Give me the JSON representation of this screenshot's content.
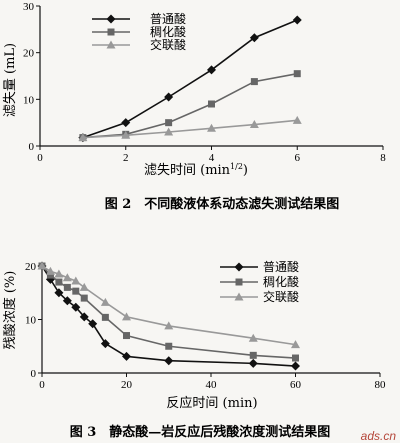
{
  "chart_data": [
    {
      "type": "line",
      "x": [
        1,
        2,
        3,
        4,
        5,
        6
      ],
      "xlim": [
        0,
        8
      ],
      "xticks": [
        "0",
        "2",
        "4",
        "6",
        "8"
      ],
      "ylim": [
        0,
        30
      ],
      "yticks": [
        "0",
        "10",
        "20",
        "30"
      ],
      "xlabel": "滤失时间 (min",
      "xlabel_sup": "1/2",
      "xlabel_end": ")",
      "ylabel": "滤失量 (mL)",
      "caption": "图 2　不同酸液体系动态滤失测试结果图",
      "legend_position": "top-center",
      "series": [
        {
          "name": "普通酸",
          "marker": "diamond",
          "values": [
            1.8,
            5.0,
            10.5,
            16.3,
            23.2,
            27.0
          ]
        },
        {
          "name": "稠化酸",
          "marker": "square",
          "values": [
            1.8,
            2.5,
            5.0,
            9.0,
            13.8,
            15.5
          ]
        },
        {
          "name": "交联酸",
          "marker": "triangle",
          "values": [
            1.8,
            2.3,
            3.0,
            3.8,
            4.6,
            5.5
          ]
        }
      ]
    },
    {
      "type": "line",
      "xlim": [
        0,
        80
      ],
      "xticks": [
        "0",
        "20",
        "40",
        "60",
        "80"
      ],
      "ylim": [
        0,
        20
      ],
      "yticks": [
        "0",
        "10",
        "20"
      ],
      "xlabel": "反应时间 (min)",
      "ylabel": "残酸浓度 (%)",
      "caption": "图 3　静态酸—岩反应后残酸浓度测试结果图",
      "legend_position": "top-right",
      "series": [
        {
          "name": "普通酸",
          "marker": "diamond",
          "x": [
            0,
            2,
            4,
            6,
            8,
            10,
            12,
            15,
            20,
            30,
            50,
            60
          ],
          "values": [
            20,
            17.5,
            15,
            13.5,
            12.3,
            10.5,
            9.2,
            5.5,
            3.1,
            2.3,
            1.8,
            1.3
          ]
        },
        {
          "name": "稠化酸",
          "marker": "square",
          "x": [
            0,
            2,
            4,
            6,
            8,
            10,
            15,
            20,
            30,
            50,
            60
          ],
          "values": [
            20,
            18.3,
            17,
            16,
            15.3,
            14,
            10.4,
            7,
            5,
            3.3,
            2.8
          ]
        },
        {
          "name": "交联酸",
          "marker": "triangle",
          "x": [
            0,
            2,
            4,
            6,
            8,
            10,
            15,
            20,
            30,
            50,
            60
          ],
          "values": [
            20,
            19,
            18.5,
            17.8,
            17.2,
            16,
            13.2,
            10.5,
            8.8,
            6.5,
            5.3
          ]
        }
      ]
    }
  ],
  "watermark": "ads.cn"
}
